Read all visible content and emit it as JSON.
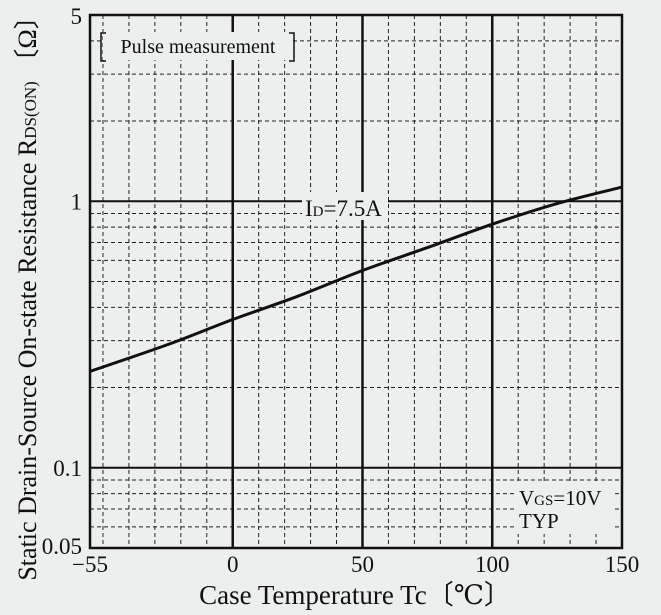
{
  "chart_data": {
    "type": "line",
    "x_axis": {
      "label": "Case Temperature  Tc〔℃〕",
      "range": [
        -55,
        150
      ],
      "tick_values": [
        -55,
        0,
        50,
        100,
        150
      ],
      "tick_labels": [
        "−55",
        "0",
        "50",
        "100",
        "150"
      ],
      "major_gridlines": [
        0,
        50,
        100
      ],
      "minor_gridline_step": 10
    },
    "y_axis": {
      "label_main": "Static Drain-Source On-state Resistance  R",
      "label_subscript": "DS(ON)",
      "label_unit": " 〔Ω〕",
      "scale": "log",
      "range": [
        0.05,
        5
      ],
      "tick_values": [
        0.05,
        0.1,
        1,
        5
      ],
      "tick_labels": [
        "0.05",
        "0.1",
        "1",
        "5"
      ],
      "major_gridlines": [
        0.1,
        1
      ]
    },
    "grid": true,
    "annotations": {
      "pulse": "Pulse measurement",
      "id_main": "I",
      "id_sub": "D",
      "id_value": "=7.5A",
      "vgs_main": "V",
      "vgs_sub": "GS",
      "vgs_value": "=10V",
      "typ": "TYP"
    },
    "series": [
      {
        "x": [
          -55,
          -25,
          0,
          25,
          50,
          75,
          100,
          125,
          150
        ],
        "y": [
          0.23,
          0.29,
          0.36,
          0.44,
          0.55,
          0.67,
          0.82,
          0.98,
          1.13
        ]
      }
    ]
  }
}
